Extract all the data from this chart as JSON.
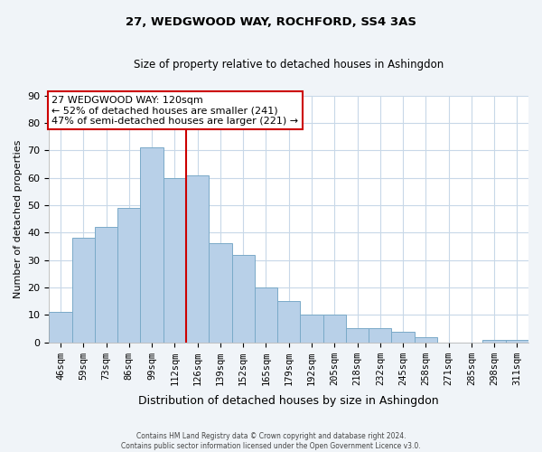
{
  "title": "27, WEDGWOOD WAY, ROCHFORD, SS4 3AS",
  "subtitle": "Size of property relative to detached houses in Ashingdon",
  "xlabel": "Distribution of detached houses by size in Ashingdon",
  "ylabel": "Number of detached properties",
  "bar_labels": [
    "46sqm",
    "59sqm",
    "73sqm",
    "86sqm",
    "99sqm",
    "112sqm",
    "126sqm",
    "139sqm",
    "152sqm",
    "165sqm",
    "179sqm",
    "192sqm",
    "205sqm",
    "218sqm",
    "232sqm",
    "245sqm",
    "258sqm",
    "271sqm",
    "285sqm",
    "298sqm",
    "311sqm"
  ],
  "bar_values": [
    11,
    38,
    42,
    49,
    71,
    60,
    61,
    36,
    32,
    20,
    15,
    10,
    10,
    5,
    5,
    4,
    2,
    0,
    0,
    1,
    1
  ],
  "bar_color": "#b8d0e8",
  "bar_edge_color": "#7aaac8",
  "reference_line_color": "#cc0000",
  "annotation_text_line1": "27 WEDGWOOD WAY: 120sqm",
  "annotation_text_line2": "← 52% of detached houses are smaller (241)",
  "annotation_text_line3": "47% of semi-detached houses are larger (221) →",
  "annotation_box_edgecolor": "#cc0000",
  "ylim": [
    0,
    90
  ],
  "yticks": [
    0,
    10,
    20,
    30,
    40,
    50,
    60,
    70,
    80,
    90
  ],
  "grid_color": "#c8d8e8",
  "plot_bg_color": "#ffffff",
  "fig_bg_color": "#f0f4f8",
  "footer_line1": "Contains HM Land Registry data © Crown copyright and database right 2024.",
  "footer_line2": "Contains public sector information licensed under the Open Government Licence v3.0."
}
